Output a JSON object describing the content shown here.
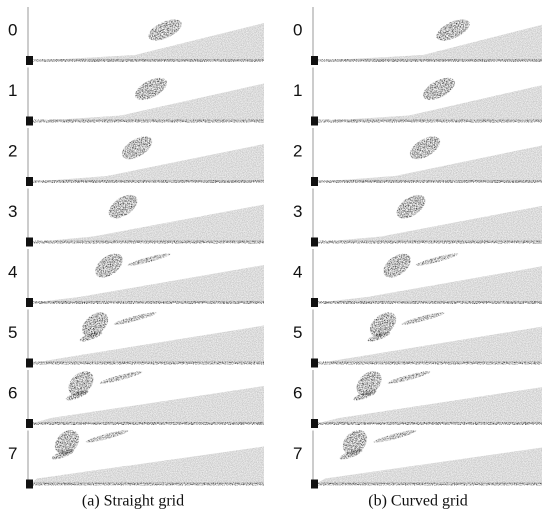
{
  "panels": [
    {
      "caption": "(a) Straight grid",
      "rows": [
        "0",
        "1",
        "2",
        "3",
        "4",
        "5",
        "6",
        "7"
      ]
    },
    {
      "caption": "(b) Curved grid",
      "rows": [
        "0",
        "1",
        "2",
        "3",
        "4",
        "5",
        "6",
        "7"
      ]
    }
  ]
}
